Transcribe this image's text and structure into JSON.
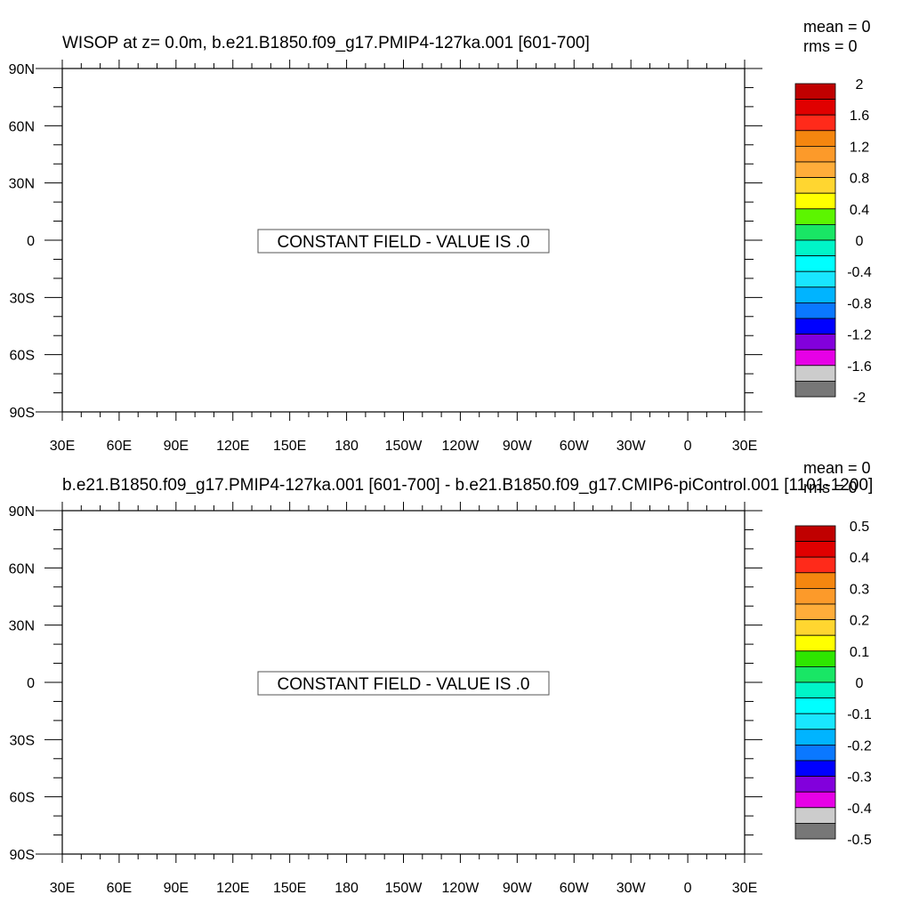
{
  "panels": [
    {
      "title": "WISOP at z=   0.0m, b.e21.B1850.f09_g17.PMIP4-127ka.001 [601-700]",
      "stats": {
        "mean": "mean = 0",
        "rms": "rms = 0"
      },
      "message": "CONSTANT FIELD - VALUE IS .0",
      "lat_labels": [
        "90N",
        "60N",
        "30N",
        "0",
        "30S",
        "60S",
        "90S"
      ],
      "lon_labels": [
        "30E",
        "60E",
        "90E",
        "120E",
        "150E",
        "180",
        "150W",
        "120W",
        "90W",
        "60W",
        "30W",
        "0",
        "30E"
      ],
      "colorbar": {
        "labels": [
          "2",
          "1.6",
          "1.2",
          "0.8",
          "0.4",
          "0",
          "-0.4",
          "-0.8",
          "-1.2",
          "-1.6",
          "-2"
        ],
        "colors": [
          "#c00000",
          "#e00000",
          "#ff2a1a",
          "#f5860f",
          "#fc9a2a",
          "#ffad3a",
          "#ffd630",
          "#ffff00",
          "#5cf500",
          "#19e665",
          "#00f5c8",
          "#00ffff",
          "#19e6ff",
          "#00b4ff",
          "#0a78ff",
          "#0000ff",
          "#8200dc",
          "#e600e6",
          "#cccccc",
          "#777777"
        ]
      }
    },
    {
      "title": "b.e21.B1850.f09_g17.PMIP4-127ka.001 [601-700] - b.e21.B1850.f09_g17.CMIP6-piControl.001 [1101-1200]",
      "stats": {
        "mean": "mean = 0",
        "rms": "rms = 0"
      },
      "message": "CONSTANT FIELD - VALUE IS .0",
      "lat_labels": [
        "90N",
        "60N",
        "30N",
        "0",
        "30S",
        "60S",
        "90S"
      ],
      "lon_labels": [
        "30E",
        "60E",
        "90E",
        "120E",
        "150E",
        "180",
        "150W",
        "120W",
        "90W",
        "60W",
        "30W",
        "0",
        "30E"
      ],
      "colorbar": {
        "labels": [
          "0.5",
          "0.4",
          "0.3",
          "0.2",
          "0.1",
          "0",
          "-0.1",
          "-0.2",
          "-0.3",
          "-0.4",
          "-0.5"
        ],
        "colors": [
          "#c00000",
          "#e00000",
          "#ff2a1a",
          "#f5860f",
          "#fc9a2a",
          "#ffad3a",
          "#ffd630",
          "#ffff00",
          "#2ee600",
          "#19e665",
          "#00f5c8",
          "#00ffff",
          "#19e6ff",
          "#00b4ff",
          "#0a78ff",
          "#0000ff",
          "#8200dc",
          "#e600e6",
          "#cccccc",
          "#777777"
        ]
      }
    }
  ],
  "chart_data": [
    {
      "type": "heatmap",
      "title": "WISOP at z=   0.0m, b.e21.B1850.f09_g17.PMIP4-127ka.001 [601-700]",
      "annotation": "CONSTANT FIELD - VALUE IS .0",
      "mean": 0,
      "rms": 0,
      "x_ticks": [
        "30E",
        "60E",
        "90E",
        "120E",
        "150E",
        "180",
        "150W",
        "120W",
        "90W",
        "60W",
        "30W",
        "0",
        "30E"
      ],
      "y_ticks": [
        "90N",
        "60N",
        "30N",
        "0",
        "30S",
        "60S",
        "90S"
      ],
      "colorbar_range": [
        -2,
        2
      ],
      "colorbar_ticks": [
        2,
        1.6,
        1.2,
        0.8,
        0.4,
        0,
        -0.4,
        -0.8,
        -1.2,
        -1.6,
        -2
      ],
      "value": 0
    },
    {
      "type": "heatmap",
      "title": "b.e21.B1850.f09_g17.PMIP4-127ka.001 [601-700] - b.e21.B1850.f09_g17.CMIP6-piControl.001 [1101-1200]",
      "annotation": "CONSTANT FIELD - VALUE IS .0",
      "mean": 0,
      "rms": 0,
      "x_ticks": [
        "30E",
        "60E",
        "90E",
        "120E",
        "150E",
        "180",
        "150W",
        "120W",
        "90W",
        "60W",
        "30W",
        "0",
        "30E"
      ],
      "y_ticks": [
        "90N",
        "60N",
        "30N",
        "0",
        "30S",
        "60S",
        "90S"
      ],
      "colorbar_range": [
        -0.5,
        0.5
      ],
      "colorbar_ticks": [
        0.5,
        0.4,
        0.3,
        0.2,
        0.1,
        0,
        -0.1,
        -0.2,
        -0.3,
        -0.4,
        -0.5
      ],
      "value": 0
    }
  ]
}
